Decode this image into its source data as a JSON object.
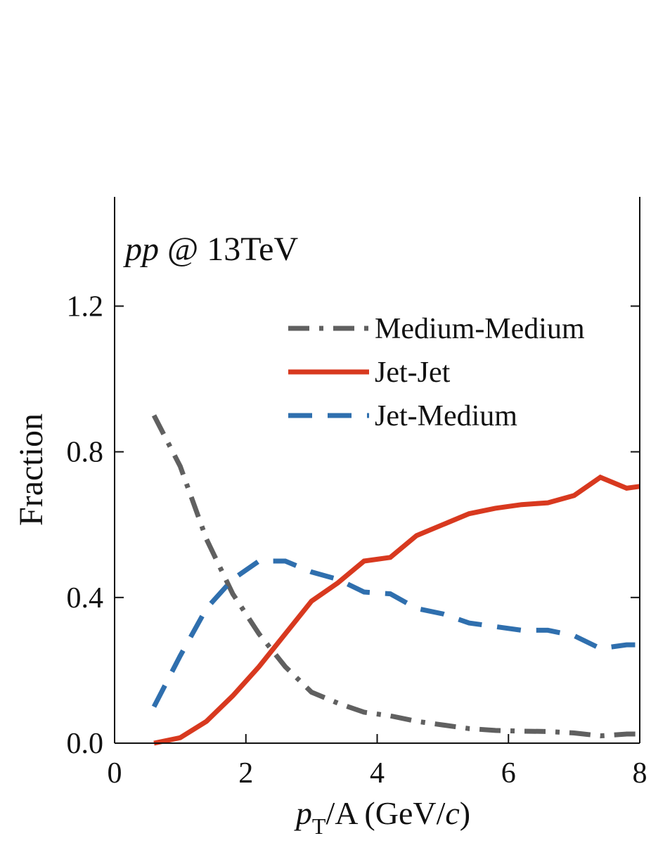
{
  "chart_data": {
    "type": "line",
    "annotation": [
      "pp",
      "@ 13TeV"
    ],
    "xlabel": [
      "p",
      "T",
      "/A (GeV/",
      "c",
      ")"
    ],
    "ylabel": "Fraction",
    "x": [
      0.6,
      1.0,
      1.4,
      1.8,
      2.2,
      2.6,
      3.0,
      3.4,
      3.8,
      4.2,
      4.6,
      5.0,
      5.4,
      5.8,
      6.2,
      6.6,
      7.0,
      7.4,
      7.8,
      8.0
    ],
    "series": [
      {
        "name": "Medium-Medium",
        "color": "#606060",
        "style": "dashdot",
        "values": [
          0.9,
          0.76,
          0.56,
          0.41,
          0.3,
          0.21,
          0.14,
          0.11,
          0.085,
          0.075,
          0.06,
          0.05,
          0.04,
          0.035,
          0.033,
          0.032,
          0.028,
          0.02,
          0.025,
          0.025
        ]
      },
      {
        "name": "Jet-Jet",
        "color": "#d8391f",
        "style": "solid",
        "values": [
          0.0,
          0.015,
          0.06,
          0.13,
          0.21,
          0.3,
          0.39,
          0.44,
          0.5,
          0.51,
          0.57,
          0.6,
          0.63,
          0.645,
          0.655,
          0.66,
          0.68,
          0.73,
          0.7,
          0.705
        ]
      },
      {
        "name": "Jet-Medium",
        "color": "#2f6fae",
        "style": "dashed",
        "values": [
          0.1,
          0.24,
          0.37,
          0.45,
          0.5,
          0.5,
          0.47,
          0.45,
          0.415,
          0.41,
          0.37,
          0.355,
          0.33,
          0.32,
          0.31,
          0.31,
          0.295,
          0.26,
          0.27,
          0.27
        ]
      }
    ],
    "xlim": [
      0,
      8
    ],
    "xticks": [
      0,
      2,
      4,
      6,
      8
    ],
    "ylim": [
      0,
      1.5
    ],
    "yticks": [
      {
        "value": 0,
        "label": "0.0"
      },
      0.4,
      0.8,
      1.2
    ],
    "legend": "upper right"
  }
}
